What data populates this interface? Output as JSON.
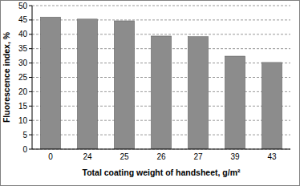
{
  "chart_data": {
    "type": "bar",
    "x_label": "Total coating weight of handsheet, g/m²",
    "y_label": "Fluorescence index, %",
    "categories": [
      "0",
      "24",
      "25",
      "26",
      "27",
      "39",
      "43"
    ],
    "values": [
      46,
      45.3,
      44.7,
      39.4,
      39.2,
      32.4,
      30.2
    ],
    "color": "#8c8c8c",
    "ylim": [
      0,
      50
    ],
    "yticks": [
      0,
      5,
      10,
      15,
      20,
      25,
      30,
      35,
      40,
      45,
      50
    ],
    "grid": true
  }
}
